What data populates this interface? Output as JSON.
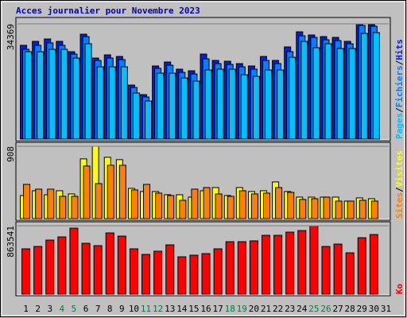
{
  "title": "Acces journalier pour Novembre 2023",
  "legend_separator": "/",
  "chart_data": [
    {
      "type": "bar",
      "ylim": [
        0,
        34369
      ],
      "yticks": [
        34369
      ],
      "series": [
        {
          "name": "Hits",
          "color": "#0020e0",
          "values": [
            27966,
            29151,
            29862,
            29151,
            26070,
            31284,
            24174,
            25122,
            24648,
            16116,
            13272,
            21804,
            22989,
            20856,
            20382,
            25359,
            23463,
            23226,
            22515,
            21804,
            24648,
            23463,
            27492,
            31995,
            31047,
            30573,
            30336,
            29151,
            34369,
            34128,
            null
          ]
        },
        {
          "name": "Fichiers",
          "color": "#0080ff",
          "values": [
            26781,
            27966,
            28677,
            27966,
            25359,
            30573,
            23463,
            24174,
            23700,
            15405,
            12561,
            21093,
            22041,
            19908,
            19434,
            23937,
            22515,
            22278,
            21567,
            20856,
            23463,
            22515,
            26070,
            30810,
            30336,
            29625,
            29388,
            28440,
            33891,
            33654,
            null
          ]
        },
        {
          "name": "Pages",
          "color": "#00c0ff",
          "values": [
            26070,
            26070,
            26781,
            26781,
            24174,
            28440,
            21567,
            21567,
            21567,
            13746,
            11376,
            19671,
            19671,
            18249,
            17301,
            20619,
            20856,
            20856,
            19197,
            18723,
            20619,
            20619,
            24411,
            29151,
            27255,
            28440,
            27018,
            27018,
            31521,
            31758,
            null
          ]
        }
      ]
    },
    {
      "type": "bar",
      "ylim": [
        0,
        908
      ],
      "yticks": [
        908
      ],
      "series": [
        {
          "name": "Visites",
          "color": "#ffff00",
          "values": [
            290,
            350,
            300,
            350,
            310,
            750,
            908,
            770,
            740,
            380,
            340,
            340,
            300,
            300,
            270,
            350,
            390,
            290,
            390,
            340,
            350,
            460,
            340,
            270,
            270,
            270,
            270,
            220,
            260,
            250,
            null
          ]
        },
        {
          "name": "Sites",
          "color": "#ff8000",
          "values": [
            430,
            370,
            370,
            280,
            280,
            660,
            440,
            670,
            670,
            360,
            430,
            320,
            290,
            230,
            370,
            390,
            310,
            280,
            350,
            310,
            320,
            390,
            330,
            240,
            250,
            270,
            220,
            220,
            230,
            220,
            null
          ]
        }
      ]
    },
    {
      "type": "bar",
      "ylim": [
        0,
        863541
      ],
      "yticks": [
        863541
      ],
      "categories": [
        "1",
        "2",
        "3",
        "4",
        "5",
        "6",
        "7",
        "8",
        "9",
        "10",
        "11",
        "12",
        "13",
        "14",
        "15",
        "16",
        "17",
        "18",
        "19",
        "20",
        "21",
        "22",
        "23",
        "24",
        "25",
        "26",
        "27",
        "28",
        "29",
        "30",
        "31"
      ],
      "category_colors": [
        "#000000",
        "#000000",
        "#000000",
        "#008040",
        "#008040",
        "#000000",
        "#000000",
        "#000000",
        "#000000",
        "#000000",
        "#008040",
        "#008040",
        "#000000",
        "#000000",
        "#000000",
        "#000000",
        "#000000",
        "#008040",
        "#008040",
        "#000000",
        "#000000",
        "#000000",
        "#000000",
        "#000000",
        "#008040",
        "#008040",
        "#000000",
        "#000000",
        "#000000",
        "#000000",
        "#000000"
      ],
      "series": [
        {
          "name": "Ko",
          "color": "#ff0000",
          "values": [
            572337,
            602460,
            682788,
            722952,
            833403,
            642624,
            612501,
            773157,
            732993,
            572337,
            502050,
            542214,
            622542,
            471927,
            492009,
            512091,
            572337,
            662706,
            662706,
            672747,
            743034,
            743034,
            783198,
            803280,
            863541,
            602460,
            632583,
            522132,
            712911,
            753075,
            null
          ]
        }
      ]
    }
  ]
}
